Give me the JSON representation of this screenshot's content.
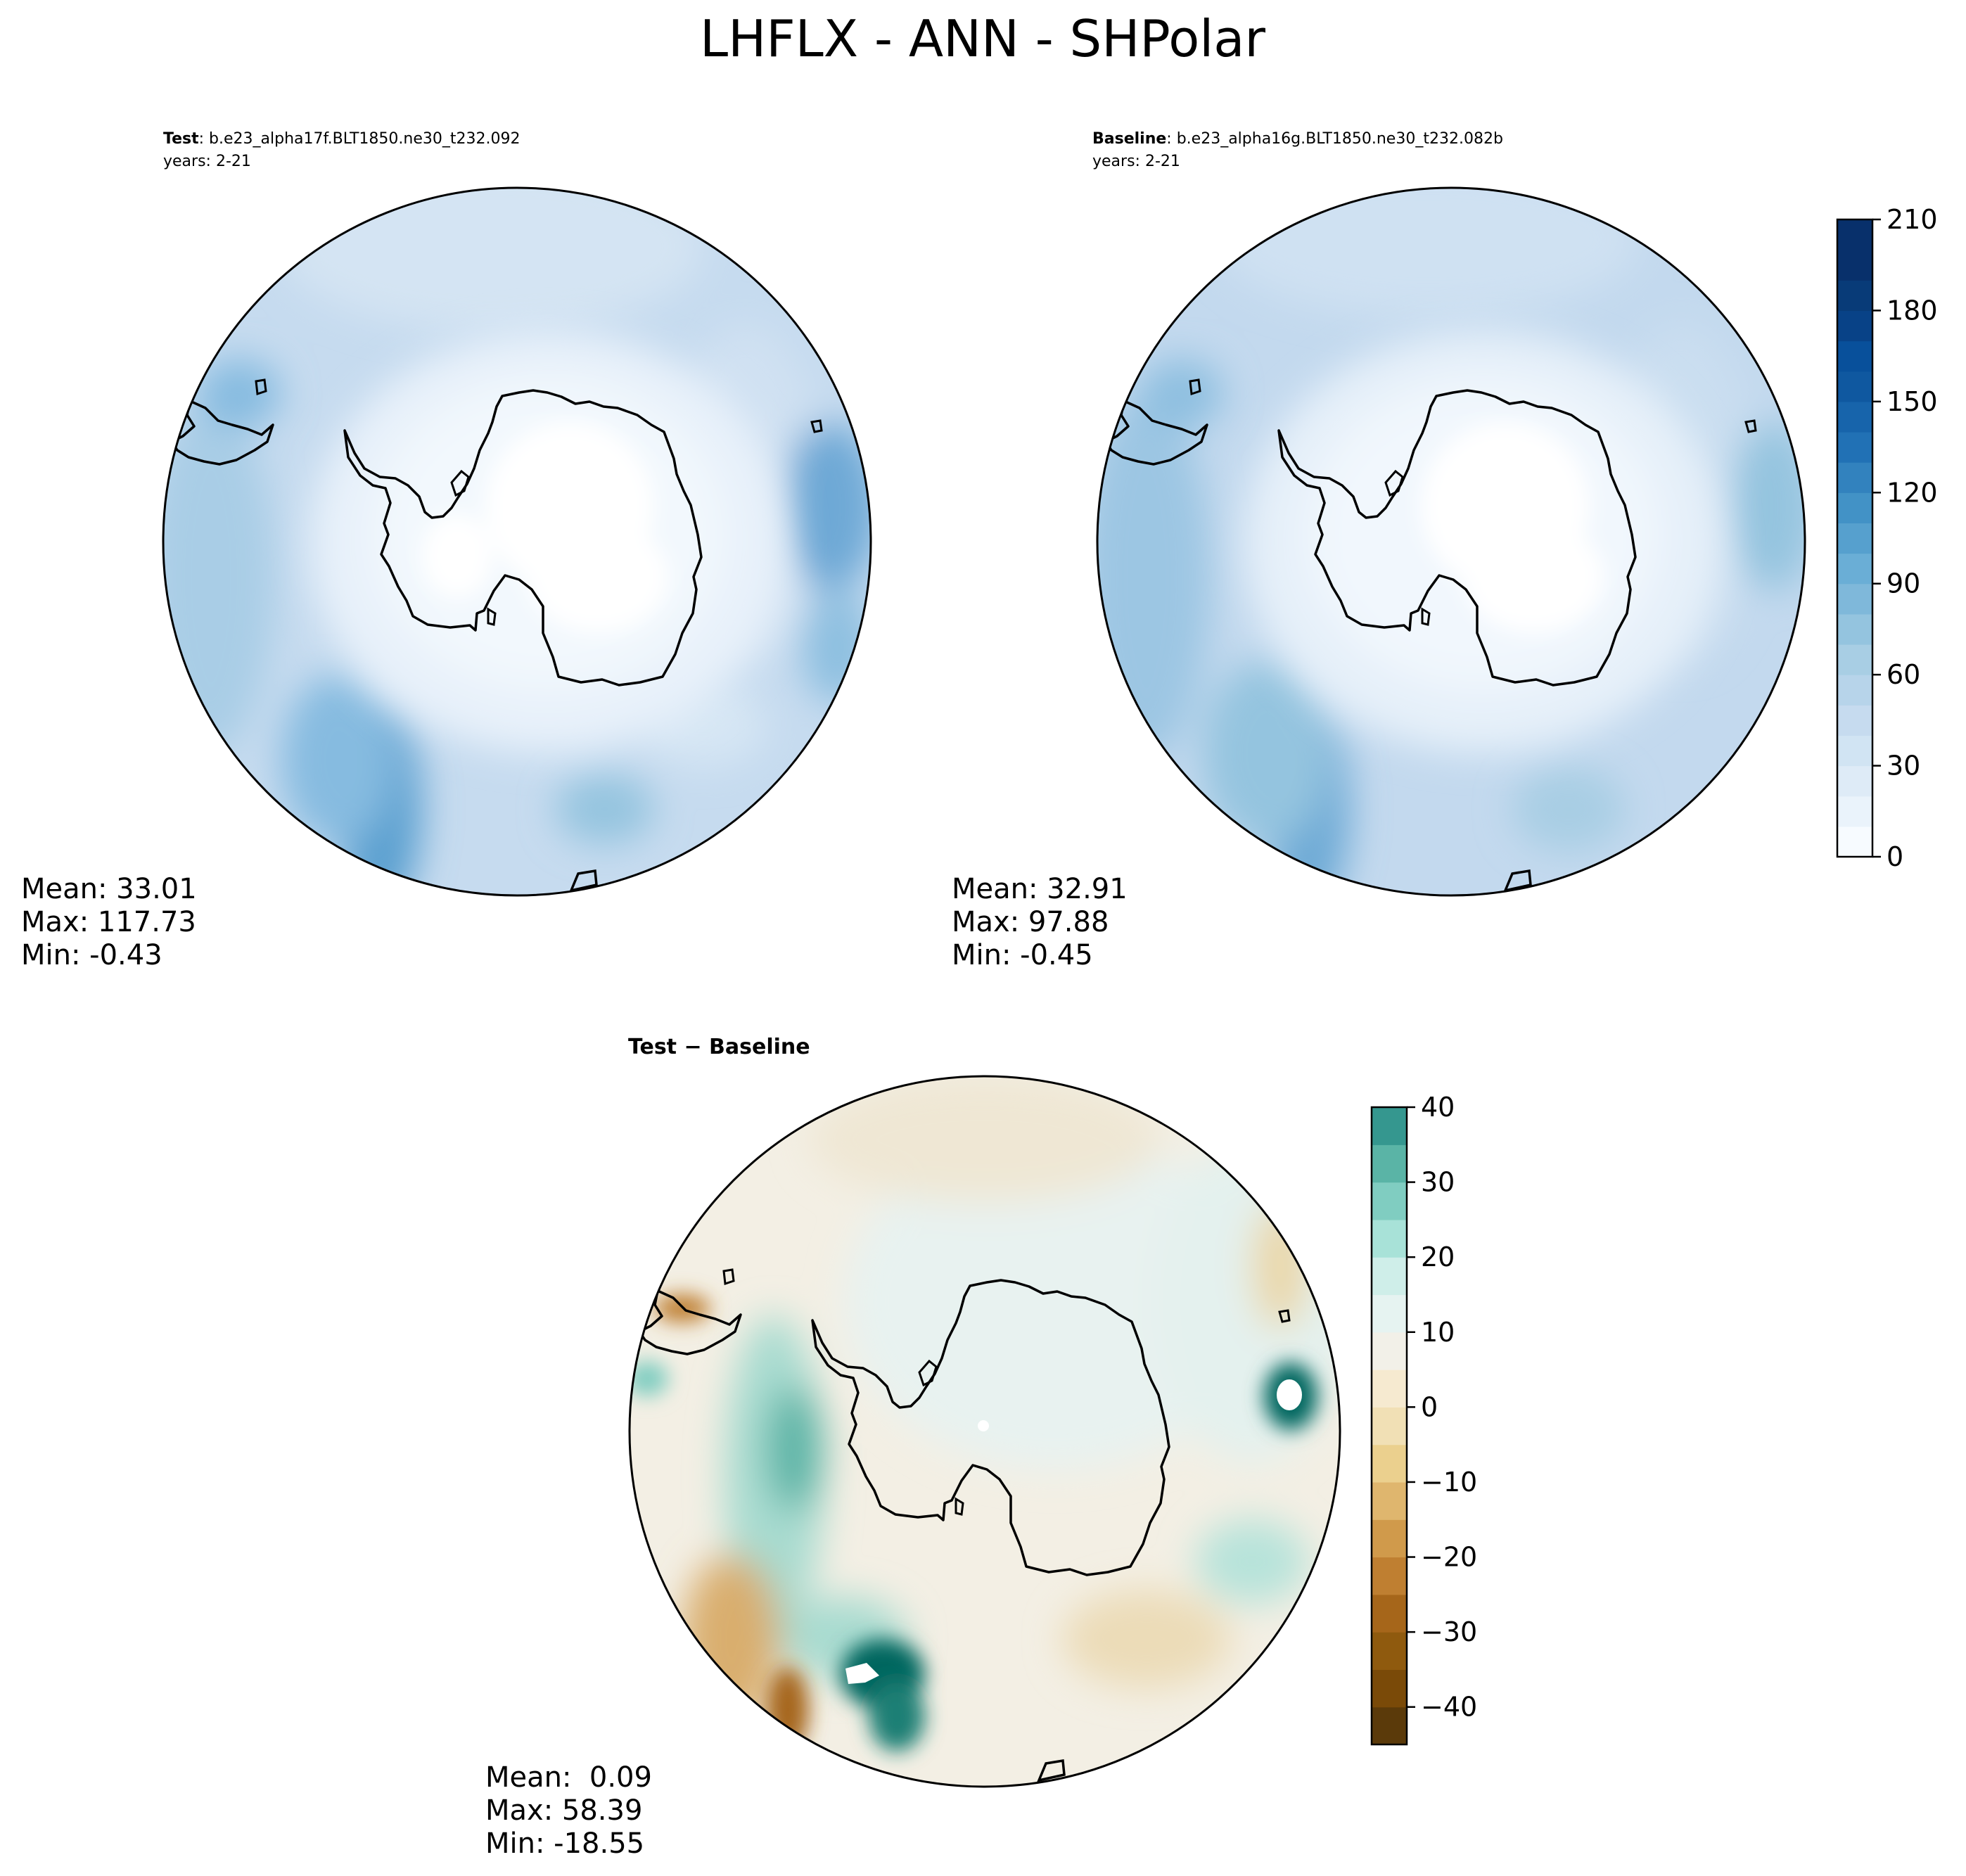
{
  "figure": {
    "title": "LHFLX - ANN - SHPolar"
  },
  "panels": [
    {
      "id": "test",
      "label_bold": "Test",
      "label_sep": ": ",
      "case": "b.e23_alpha17f.BLT1850.ne30_t232.092",
      "years": "years: 2-21",
      "stats": {
        "mean": "Mean: 33.01",
        "max": "Max: 117.73",
        "min": "Min: -0.43"
      }
    },
    {
      "id": "baseline",
      "label_bold": "Baseline",
      "label_sep": ": ",
      "case": "b.e23_alpha16g.BLT1850.ne30_t232.082b",
      "years": "years: 2-21",
      "stats": {
        "mean": "Mean: 32.91",
        "max": "Max: 97.88",
        "min": "Min: -0.45"
      }
    },
    {
      "id": "diff",
      "title": "Test − Baseline",
      "stats": {
        "mean": "Mean:  0.09",
        "max": "Max: 58.39",
        "min": "Min: -18.55"
      }
    }
  ],
  "chart_data": [
    {
      "type": "heatmap",
      "projection": "south-polar-stereographic",
      "panels": [
        "test",
        "baseline"
      ],
      "colorbar": {
        "min": 0,
        "max": 210,
        "step": 10,
        "ticks": [
          "0",
          "30",
          "60",
          "90",
          "120",
          "150",
          "180",
          "210"
        ],
        "colors": [
          "#f7fbff",
          "#eaf3fb",
          "#deebf7",
          "#d1e4f3",
          "#c6dbef",
          "#b7d4ea",
          "#a8cee4",
          "#94c4df",
          "#7fb8da",
          "#6aaed6",
          "#56a0ce",
          "#4292c6",
          "#3282be",
          "#2171b5",
          "#1764ab",
          "#0f58a0",
          "#08509b",
          "#084287",
          "#083b78",
          "#08306b",
          "#08306b"
        ]
      }
    },
    {
      "type": "heatmap",
      "projection": "south-polar-stereographic",
      "panels": [
        "diff"
      ],
      "colorbar": {
        "min": -45,
        "max": 40,
        "step": 5,
        "ticks": [
          "−40",
          "−30",
          "−20",
          "−10",
          "0",
          "10",
          "20",
          "30",
          "40"
        ],
        "colors": [
          "#5b3a0a",
          "#7a4a08",
          "#8f5a0e",
          "#a6661a",
          "#bf7f31",
          "#d09a4b",
          "#dfb66e",
          "#ebd08e",
          "#f1e0b5",
          "#f6ead0",
          "#f2f0e8",
          "#e6f3f1",
          "#cfeee9",
          "#a8e2d8",
          "#80cdc1",
          "#5ab4a6",
          "#35978f",
          "#1c7f74",
          "#02665e",
          "#01493f"
        ]
      }
    }
  ]
}
